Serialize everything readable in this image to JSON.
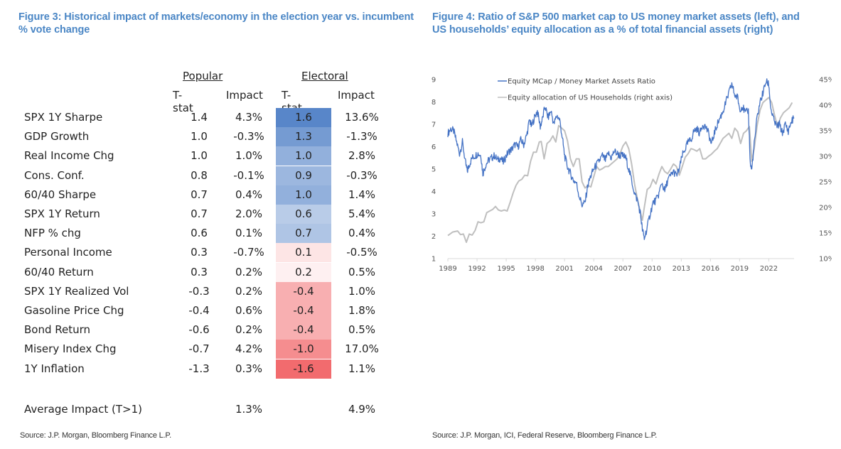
{
  "figure3": {
    "title": "Figure 3: Historical impact of markets/economy in the election year vs. incumbent % vote change",
    "group_headers": {
      "popular": "Popular",
      "electoral": "Electoral"
    },
    "column_headers": [
      "T-stat",
      "Impact",
      "T-stat",
      "Impact"
    ],
    "rows": [
      {
        "label": "SPX 1Y Sharpe",
        "pop_tstat": "1.4",
        "pop_impact": "4.3%",
        "ele_tstat": "1.6",
        "ele_impact": "13.6%",
        "tstat_value": 1.6
      },
      {
        "label": "GDP Growth",
        "pop_tstat": "1.0",
        "pop_impact": "-0.3%",
        "ele_tstat": "1.3",
        "ele_impact": "-1.3%",
        "tstat_value": 1.3
      },
      {
        "label": "Real Income Chg",
        "pop_tstat": "1.0",
        "pop_impact": "1.0%",
        "ele_tstat": "1.0",
        "ele_impact": "2.8%",
        "tstat_value": 1.0
      },
      {
        "label": "Cons. Conf.",
        "pop_tstat": "0.8",
        "pop_impact": "-0.1%",
        "ele_tstat": "0.9",
        "ele_impact": "-0.3%",
        "tstat_value": 0.9
      },
      {
        "label": "60/40 Sharpe",
        "pop_tstat": "0.7",
        "pop_impact": "0.4%",
        "ele_tstat": "1.0",
        "ele_impact": "1.4%",
        "tstat_value": 1.0
      },
      {
        "label": "SPX 1Y Return",
        "pop_tstat": "0.7",
        "pop_impact": "2.0%",
        "ele_tstat": "0.6",
        "ele_impact": "5.4%",
        "tstat_value": 0.6
      },
      {
        "label": "NFP % chg",
        "pop_tstat": "0.6",
        "pop_impact": "0.1%",
        "ele_tstat": "0.7",
        "ele_impact": "0.4%",
        "tstat_value": 0.7
      },
      {
        "label": "Personal Income",
        "pop_tstat": "0.3",
        "pop_impact": "-0.7%",
        "ele_tstat": "0.1",
        "ele_impact": "-0.5%",
        "tstat_value": 0.1
      },
      {
        "label": "60/40 Return",
        "pop_tstat": "0.3",
        "pop_impact": "0.2%",
        "ele_tstat": "0.2",
        "ele_impact": "0.5%",
        "tstat_value": 0.2
      },
      {
        "label": "SPX 1Y Realized Vol",
        "pop_tstat": "-0.3",
        "pop_impact": "0.2%",
        "ele_tstat": "-0.4",
        "ele_impact": "1.0%",
        "tstat_value": -0.4
      },
      {
        "label": "Gasoline Price Chg",
        "pop_tstat": "-0.4",
        "pop_impact": "0.6%",
        "ele_tstat": "-0.4",
        "ele_impact": "1.8%",
        "tstat_value": -0.4
      },
      {
        "label": "Bond Return",
        "pop_tstat": "-0.6",
        "pop_impact": "0.2%",
        "ele_tstat": "-0.4",
        "ele_impact": "0.5%",
        "tstat_value": -0.4
      },
      {
        "label": "Misery Index Chg",
        "pop_tstat": "-0.7",
        "pop_impact": "4.2%",
        "ele_tstat": "-1.0",
        "ele_impact": "17.0%",
        "tstat_value": -1.0
      },
      {
        "label": "1Y Inflation",
        "pop_tstat": "-1.3",
        "pop_impact": "0.3%",
        "ele_tstat": "-1.6",
        "ele_impact": "1.1%",
        "tstat_value": -1.6
      }
    ],
    "average": {
      "label": "Average Impact (T>1)",
      "pop_impact": "1.3%",
      "ele_impact": "4.9%"
    },
    "heat_colors": {
      "positive": "#4a7cc4",
      "negative": "#f05a5e",
      "neutral": "#ffffff"
    },
    "source": "Source: J.P. Morgan, Bloomberg Finance L.P."
  },
  "figure4": {
    "title": "Figure 4: Ratio of S&P 500 market cap to US money market assets (left), and US households’ equity allocation as a % of total financial assets (right)",
    "source": "Source: J.P. Morgan, ICI, Federal Reserve, Bloomberg Finance L.P."
  },
  "chart_data": {
    "type": "line",
    "title": "Ratio of S&P 500 market cap to US money market assets (left), and US households' equity allocation as a % of total financial assets (right)",
    "xlabel": "",
    "ylabel": "",
    "y2label": "",
    "x_ticks": [
      "1989",
      "1992",
      "1995",
      "1998",
      "2001",
      "2004",
      "2007",
      "2010",
      "2013",
      "2016",
      "2019",
      "2022"
    ],
    "xlim": [
      1989,
      2024.6
    ],
    "ylim": [
      1,
      9
    ],
    "y_ticks": [
      "1",
      "2",
      "3",
      "4",
      "5",
      "6",
      "7",
      "8",
      "9"
    ],
    "y2lim": [
      10,
      45
    ],
    "y2_ticks": [
      "10%",
      "15%",
      "20%",
      "25%",
      "30%",
      "35%",
      "40%",
      "45%"
    ],
    "grid": false,
    "legend_position": "top-left",
    "series": [
      {
        "name": "Equity MCap / Money Market Assets Ratio",
        "axis": "left",
        "color": "#4472c4",
        "x": [
          1989.0,
          1989.3,
          1989.6,
          1989.9,
          1990.2,
          1990.5,
          1990.8,
          1991.0,
          1991.2,
          1991.5,
          1991.8,
          1992.1,
          1992.4,
          1992.6,
          1992.9,
          1993.2,
          1993.5,
          1993.8,
          1994.1,
          1994.4,
          1994.7,
          1995.0,
          1995.3,
          1995.6,
          1995.9,
          1996.2,
          1996.5,
          1996.8,
          1997.1,
          1997.4,
          1997.6,
          1997.9,
          1998.2,
          1998.5,
          1998.7,
          1999.0,
          1999.3,
          1999.6,
          1999.9,
          2000.2,
          2000.5,
          2000.8,
          2001.0,
          2001.3,
          2001.6,
          2001.9,
          2002.2,
          2002.5,
          2002.8,
          2003.1,
          2003.4,
          2003.7,
          2004.0,
          2004.3,
          2004.6,
          2004.9,
          2005.2,
          2005.5,
          2005.8,
          2006.1,
          2006.4,
          2006.7,
          2007.0,
          2007.3,
          2007.6,
          2007.9,
          2008.2,
          2008.5,
          2008.8,
          2009.0,
          2009.2,
          2009.5,
          2009.8,
          2010.1,
          2010.4,
          2010.7,
          2011.0,
          2011.3,
          2011.6,
          2011.9,
          2012.2,
          2012.5,
          2012.8,
          2013.1,
          2013.4,
          2013.7,
          2014.0,
          2014.3,
          2014.6,
          2014.9,
          2015.2,
          2015.5,
          2015.8,
          2016.1,
          2016.4,
          2016.7,
          2017.0,
          2017.3,
          2017.6,
          2017.9,
          2018.2,
          2018.5,
          2018.8,
          2019.0,
          2019.3,
          2019.6,
          2019.9,
          2020.1,
          2020.25,
          2020.5,
          2020.8,
          2021.1,
          2021.4,
          2021.7,
          2022.0,
          2022.2,
          2022.5,
          2022.8,
          2023.1,
          2023.4,
          2023.7,
          2024.0,
          2024.3,
          2024.6
        ],
        "y": [
          6.6,
          6.8,
          6.7,
          6.2,
          5.7,
          6.2,
          5.3,
          4.9,
          5.2,
          5.5,
          5.6,
          5.7,
          5.6,
          4.8,
          5.2,
          5.4,
          5.5,
          5.6,
          5.4,
          5.5,
          5.3,
          5.6,
          5.8,
          5.9,
          6.1,
          6.0,
          6.3,
          6.1,
          6.5,
          7.2,
          6.9,
          7.3,
          7.6,
          6.9,
          7.2,
          7.8,
          7.3,
          7.6,
          7.0,
          7.4,
          7.2,
          6.3,
          5.6,
          5.1,
          4.8,
          4.5,
          4.4,
          3.8,
          3.4,
          3.5,
          4.3,
          4.7,
          5.0,
          5.2,
          5.4,
          5.6,
          5.4,
          5.7,
          5.5,
          5.8,
          5.7,
          5.6,
          5.6,
          5.5,
          5.0,
          4.5,
          3.9,
          3.6,
          3.0,
          2.3,
          1.9,
          2.4,
          3.0,
          3.5,
          3.6,
          3.9,
          4.4,
          4.0,
          4.5,
          4.7,
          4.9,
          4.7,
          5.0,
          5.6,
          5.9,
          6.2,
          6.3,
          6.7,
          6.8,
          6.6,
          7.0,
          6.9,
          6.6,
          6.1,
          6.6,
          7.0,
          7.3,
          7.6,
          8.0,
          8.4,
          8.8,
          8.3,
          8.2,
          7.7,
          7.8,
          7.5,
          7.6,
          5.2,
          5.0,
          6.1,
          7.3,
          8.0,
          8.4,
          8.9,
          8.8,
          7.7,
          7.2,
          6.9,
          7.0,
          6.6,
          7.0,
          6.7,
          7.1,
          7.3
        ]
      },
      {
        "name": "Equity allocation of US Households (right axis)",
        "axis": "right",
        "color": "#bfbfbf",
        "x": [
          1989.0,
          1989.5,
          1990.0,
          1990.3,
          1990.6,
          1990.9,
          1991.2,
          1991.5,
          1991.8,
          1992.1,
          1992.4,
          1992.7,
          1993.0,
          1993.3,
          1993.6,
          1993.9,
          1994.2,
          1994.5,
          1994.8,
          1995.1,
          1995.4,
          1995.7,
          1996.0,
          1996.3,
          1996.6,
          1996.9,
          1997.2,
          1997.5,
          1997.8,
          1998.1,
          1998.4,
          1998.6,
          1998.9,
          1999.2,
          1999.5,
          1999.8,
          2000.1,
          2000.4,
          2000.7,
          2001.0,
          2001.3,
          2001.6,
          2001.9,
          2002.2,
          2002.5,
          2002.8,
          2003.1,
          2003.4,
          2003.7,
          2004.0,
          2004.3,
          2004.6,
          2004.9,
          2005.2,
          2005.5,
          2005.8,
          2006.1,
          2006.4,
          2006.7,
          2007.0,
          2007.3,
          2007.6,
          2007.9,
          2008.2,
          2008.5,
          2008.8,
          2009.0,
          2009.2,
          2009.5,
          2009.8,
          2010.1,
          2010.4,
          2010.7,
          2011.0,
          2011.3,
          2011.6,
          2011.9,
          2012.2,
          2012.5,
          2012.8,
          2013.1,
          2013.4,
          2013.7,
          2014.0,
          2014.3,
          2014.6,
          2014.9,
          2015.2,
          2015.5,
          2015.8,
          2016.1,
          2016.4,
          2016.7,
          2017.0,
          2017.3,
          2017.6,
          2017.9,
          2018.2,
          2018.5,
          2018.8,
          2019.1,
          2019.4,
          2019.7,
          2020.0,
          2020.25,
          2020.5,
          2020.8,
          2021.1,
          2021.4,
          2021.7,
          2022.0,
          2022.3,
          2022.6,
          2022.9,
          2023.2,
          2023.5,
          2023.8,
          2024.1,
          2024.4
        ],
        "y": [
          14.5,
          15.2,
          15.4,
          14.7,
          14.8,
          13.2,
          14.8,
          14.6,
          15.5,
          17.2,
          17.0,
          17.2,
          19.0,
          19.3,
          19.6,
          20.2,
          19.5,
          19.3,
          19.5,
          19.3,
          21.0,
          22.8,
          24.3,
          25.2,
          25.5,
          26.3,
          26.2,
          29.0,
          30.8,
          30.8,
          32.8,
          32.9,
          29.5,
          32.5,
          33.0,
          34.0,
          32.8,
          36.0,
          35.5,
          35.0,
          33.0,
          29.5,
          28.0,
          29.5,
          29.5,
          25.0,
          23.8,
          24.3,
          24.0,
          26.0,
          28.0,
          27.3,
          27.6,
          28.0,
          28.0,
          28.5,
          29.0,
          29.5,
          30.5,
          32.0,
          32.8,
          31.5,
          28.5,
          24.5,
          21.5,
          19.0,
          17.5,
          20.0,
          23.5,
          24.0,
          25.5,
          24.6,
          26.5,
          28.0,
          27.0,
          26.6,
          27.5,
          28.5,
          28.0,
          26.3,
          28.0,
          29.8,
          30.5,
          31.5,
          31.3,
          31.0,
          31.5,
          29.5,
          29.5,
          30.0,
          30.4,
          31.0,
          31.5,
          32.5,
          33.5,
          34.0,
          34.5,
          33.5,
          35.5,
          34.8,
          32.5,
          34.5,
          35.0,
          35.8,
          29.0,
          31.5,
          36.0,
          39.0,
          40.5,
          41.0,
          41.5,
          40.5,
          38.0,
          35.8,
          37.5,
          38.5,
          39.0,
          39.5,
          40.5
        ]
      }
    ]
  }
}
